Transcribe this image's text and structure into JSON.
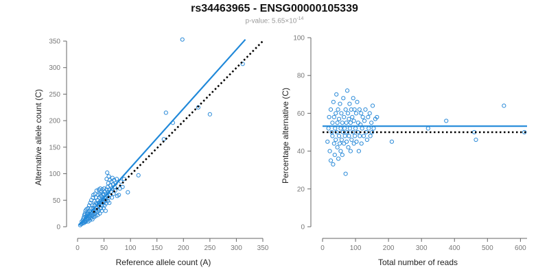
{
  "header": {
    "title": "rs34463965 - ENSG00000105339",
    "pvalue_prefix": "p-value: 5.65×10",
    "pvalue_exponent": "-14"
  },
  "colors": {
    "points": "#2a8ad8",
    "fit": "#1f88d9",
    "reference": "#000000"
  },
  "chart_data": [
    {
      "type": "scatter",
      "xlabel": "Reference allele count (A)",
      "ylabel": "Alternative allele count (C)",
      "xlim": [
        0,
        350
      ],
      "ylim": [
        0,
        350
      ],
      "xticks": [
        "0",
        "50",
        "100",
        "150",
        "200",
        "250",
        "300",
        "350"
      ],
      "yticks": [
        "0",
        "50",
        "100",
        "150",
        "200",
        "250",
        "300",
        "350"
      ],
      "fit_line": {
        "from": [
          3,
          3
        ],
        "to": [
          317,
          353
        ]
      },
      "reference_line": {
        "from": [
          30,
          27
        ],
        "to": [
          350,
          350
        ]
      },
      "points": [
        [
          5,
          3
        ],
        [
          7,
          5
        ],
        [
          8,
          10
        ],
        [
          9,
          6
        ],
        [
          10,
          12
        ],
        [
          10,
          8
        ],
        [
          11,
          15
        ],
        [
          12,
          7
        ],
        [
          12,
          18
        ],
        [
          13,
          10
        ],
        [
          13,
          22
        ],
        [
          14,
          12
        ],
        [
          14,
          25
        ],
        [
          15,
          9
        ],
        [
          15,
          14
        ],
        [
          15,
          30
        ],
        [
          16,
          18
        ],
        [
          16,
          11
        ],
        [
          17,
          20
        ],
        [
          17,
          33
        ],
        [
          18,
          13
        ],
        [
          18,
          24
        ],
        [
          19,
          16
        ],
        [
          19,
          28
        ],
        [
          20,
          35
        ],
        [
          20,
          10
        ],
        [
          20,
          20
        ],
        [
          21,
          15
        ],
        [
          21,
          25
        ],
        [
          22,
          30
        ],
        [
          22,
          40
        ],
        [
          23,
          18
        ],
        [
          23,
          12
        ],
        [
          24,
          22
        ],
        [
          24,
          45
        ],
        [
          25,
          28
        ],
        [
          25,
          16
        ],
        [
          26,
          35
        ],
        [
          26,
          50
        ],
        [
          27,
          20
        ],
        [
          27,
          25
        ],
        [
          28,
          40
        ],
        [
          28,
          14
        ],
        [
          29,
          30
        ],
        [
          29,
          55
        ],
        [
          30,
          22
        ],
        [
          30,
          35
        ],
        [
          30,
          60
        ],
        [
          31,
          18
        ],
        [
          31,
          28
        ],
        [
          32,
          40
        ],
        [
          32,
          48
        ],
        [
          33,
          25
        ],
        [
          33,
          62
        ],
        [
          34,
          30
        ],
        [
          34,
          20
        ],
        [
          35,
          45
        ],
        [
          35,
          55
        ],
        [
          36,
          35
        ],
        [
          36,
          68
        ],
        [
          37,
          28
        ],
        [
          37,
          42
        ],
        [
          38,
          50
        ],
        [
          38,
          22
        ],
        [
          39,
          60
        ],
        [
          39,
          33
        ],
        [
          40,
          70
        ],
        [
          40,
          45
        ],
        [
          40,
          30
        ],
        [
          41,
          55
        ],
        [
          41,
          40
        ],
        [
          42,
          62
        ],
        [
          42,
          25
        ],
        [
          43,
          48
        ],
        [
          43,
          72
        ],
        [
          44,
          35
        ],
        [
          44,
          58
        ],
        [
          45,
          50
        ],
        [
          45,
          66
        ],
        [
          46,
          40
        ],
        [
          46,
          30
        ],
        [
          47,
          55
        ],
        [
          47,
          70
        ],
        [
          48,
          45
        ],
        [
          48,
          62
        ],
        [
          49,
          35
        ],
        [
          49,
          52
        ],
        [
          50,
          60
        ],
        [
          50,
          72
        ],
        [
          51,
          48
        ],
        [
          51,
          40
        ],
        [
          52,
          66
        ],
        [
          52,
          55
        ],
        [
          53,
          50
        ],
        [
          53,
          30
        ],
        [
          54,
          62
        ],
        [
          54,
          44
        ],
        [
          55,
          70
        ],
        [
          55,
          90
        ],
        [
          56,
          58
        ],
        [
          56,
          102
        ],
        [
          57,
          75
        ],
        [
          57,
          48
        ],
        [
          58,
          65
        ],
        [
          58,
          82
        ],
        [
          59,
          55
        ],
        [
          59,
          95
        ],
        [
          60,
          70
        ],
        [
          60,
          45
        ],
        [
          61,
          88
        ],
        [
          61,
          60
        ],
        [
          62,
          78
        ],
        [
          63,
          66
        ],
        [
          64,
          85
        ],
        [
          65,
          72
        ],
        [
          65,
          55
        ],
        [
          66,
          92
        ],
        [
          67,
          80
        ],
        [
          68,
          62
        ],
        [
          69,
          88
        ],
        [
          70,
          75
        ],
        [
          71,
          68
        ],
        [
          72,
          82
        ],
        [
          74,
          90
        ],
        [
          75,
          58
        ],
        [
          78,
          60
        ],
        [
          80,
          72
        ],
        [
          82,
          85
        ],
        [
          85,
          75
        ],
        [
          88,
          90
        ],
        [
          95,
          65
        ],
        [
          115,
          97
        ],
        [
          163,
          165
        ],
        [
          167,
          215
        ],
        [
          180,
          196
        ],
        [
          198,
          353
        ],
        [
          228,
          225
        ],
        [
          250,
          212
        ],
        [
          312,
          307
        ]
      ]
    },
    {
      "type": "scatter",
      "xlabel": "Total number of reads",
      "ylabel": "Percentage alternative (C)",
      "xlim": [
        0,
        620
      ],
      "ylim": [
        0,
        100
      ],
      "xticks": [
        "0",
        "100",
        "200",
        "300",
        "400",
        "500",
        "600"
      ],
      "yticks": [
        "0",
        "20",
        "40",
        "60",
        "80",
        "100"
      ],
      "fit_line": {
        "from": [
          0,
          53.2
        ],
        "to": [
          620,
          53.2
        ]
      },
      "reference_line": {
        "from": [
          0,
          50
        ],
        "to": [
          620,
          50
        ]
      },
      "points": [
        [
          15,
          45
        ],
        [
          18,
          52
        ],
        [
          20,
          58
        ],
        [
          22,
          40
        ],
        [
          25,
          62
        ],
        [
          25,
          35
        ],
        [
          28,
          50
        ],
        [
          30,
          55
        ],
        [
          30,
          48
        ],
        [
          32,
          33
        ],
        [
          33,
          66
        ],
        [
          35,
          44
        ],
        [
          35,
          58
        ],
        [
          37,
          38
        ],
        [
          38,
          52
        ],
        [
          40,
          60
        ],
        [
          40,
          46
        ],
        [
          42,
          70
        ],
        [
          43,
          50
        ],
        [
          45,
          42
        ],
        [
          45,
          55
        ],
        [
          47,
          62
        ],
        [
          48,
          36
        ],
        [
          50,
          48
        ],
        [
          50,
          57
        ],
        [
          52,
          44
        ],
        [
          53,
          65
        ],
        [
          55,
          52
        ],
        [
          55,
          40
        ],
        [
          57,
          60
        ],
        [
          58,
          46
        ],
        [
          60,
          55
        ],
        [
          60,
          38
        ],
        [
          62,
          50
        ],
        [
          63,
          68
        ],
        [
          65,
          44
        ],
        [
          65,
          58
        ],
        [
          67,
          52
        ],
        [
          68,
          48
        ],
        [
          70,
          62
        ],
        [
          70,
          28
        ],
        [
          72,
          55
        ],
        [
          73,
          45
        ],
        [
          75,
          72
        ],
        [
          75,
          50
        ],
        [
          77,
          60
        ],
        [
          78,
          42
        ],
        [
          80,
          57
        ],
        [
          80,
          48
        ],
        [
          82,
          65
        ],
        [
          83,
          52
        ],
        [
          85,
          40
        ],
        [
          85,
          55
        ],
        [
          87,
          62
        ],
        [
          88,
          46
        ],
        [
          90,
          58
        ],
        [
          92,
          50
        ],
        [
          93,
          68
        ],
        [
          95,
          44
        ],
        [
          95,
          56
        ],
        [
          97,
          62
        ],
        [
          98,
          48
        ],
        [
          100,
          52
        ],
        [
          102,
          60
        ],
        [
          103,
          45
        ],
        [
          105,
          66
        ],
        [
          107,
          50
        ],
        [
          108,
          55
        ],
        [
          110,
          40
        ],
        [
          112,
          62
        ],
        [
          113,
          48
        ],
        [
          115,
          54
        ],
        [
          117,
          60
        ],
        [
          118,
          44
        ],
        [
          120,
          52
        ],
        [
          122,
          58
        ],
        [
          125,
          48
        ],
        [
          127,
          56
        ],
        [
          130,
          62
        ],
        [
          132,
          50
        ],
        [
          135,
          46
        ],
        [
          138,
          58
        ],
        [
          140,
          52
        ],
        [
          143,
          60
        ],
        [
          145,
          48
        ],
        [
          148,
          55
        ],
        [
          150,
          50
        ],
        [
          152,
          64
        ],
        [
          155,
          52
        ],
        [
          160,
          57
        ],
        [
          165,
          58
        ],
        [
          210,
          45
        ],
        [
          320,
          52
        ],
        [
          375,
          56
        ],
        [
          460,
          50
        ],
        [
          465,
          46
        ],
        [
          550,
          64
        ],
        [
          612,
          50
        ]
      ]
    }
  ]
}
